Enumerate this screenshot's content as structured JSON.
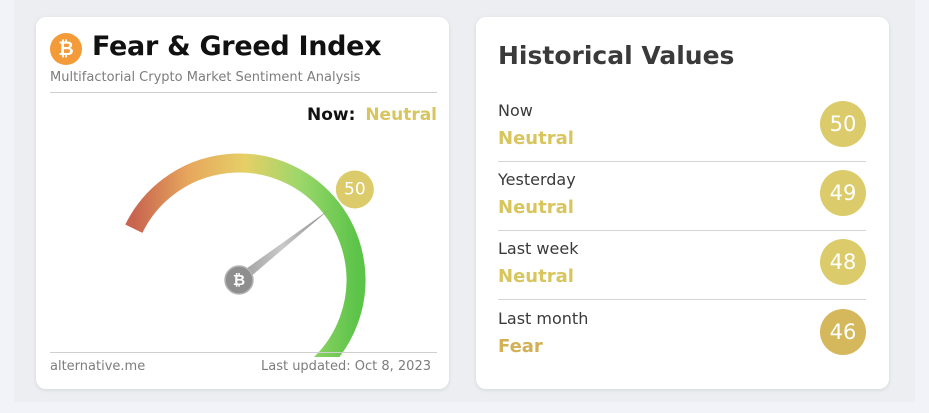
{
  "left_card": {
    "title": "Fear & Greed Index",
    "subtitle": "Multifactorial Crypto Market Sentiment Analysis",
    "logo_glyph": "₿",
    "now_label": "Now:",
    "now_value": "Neutral",
    "gauge": {
      "value": 50,
      "value_text": "50",
      "min": 0,
      "max": 100,
      "badge_color": "#dccb6a",
      "classification_color": "#d8c55e",
      "arc_colors": [
        "#c8644f",
        "#e7a85d",
        "#e6cf66",
        "#9bd76a",
        "#5dc44a"
      ],
      "hub_glyph": "₿"
    },
    "footer_source": "alternative.me",
    "footer_updated": "Last updated: Oct 8, 2023"
  },
  "right_card": {
    "title": "Historical Values",
    "rows": [
      {
        "period": "Now",
        "classification": "Neutral",
        "value": "50",
        "color": "#dccb6a",
        "text_color": "#d8c55e"
      },
      {
        "period": "Yesterday",
        "classification": "Neutral",
        "value": "49",
        "color": "#dccb6a",
        "text_color": "#d8c55e"
      },
      {
        "period": "Last week",
        "classification": "Neutral",
        "value": "48",
        "color": "#dccb6a",
        "text_color": "#d8c55e"
      },
      {
        "period": "Last month",
        "classification": "Fear",
        "value": "46",
        "color": "#d5b85c",
        "text_color": "#d2b055"
      }
    ]
  }
}
